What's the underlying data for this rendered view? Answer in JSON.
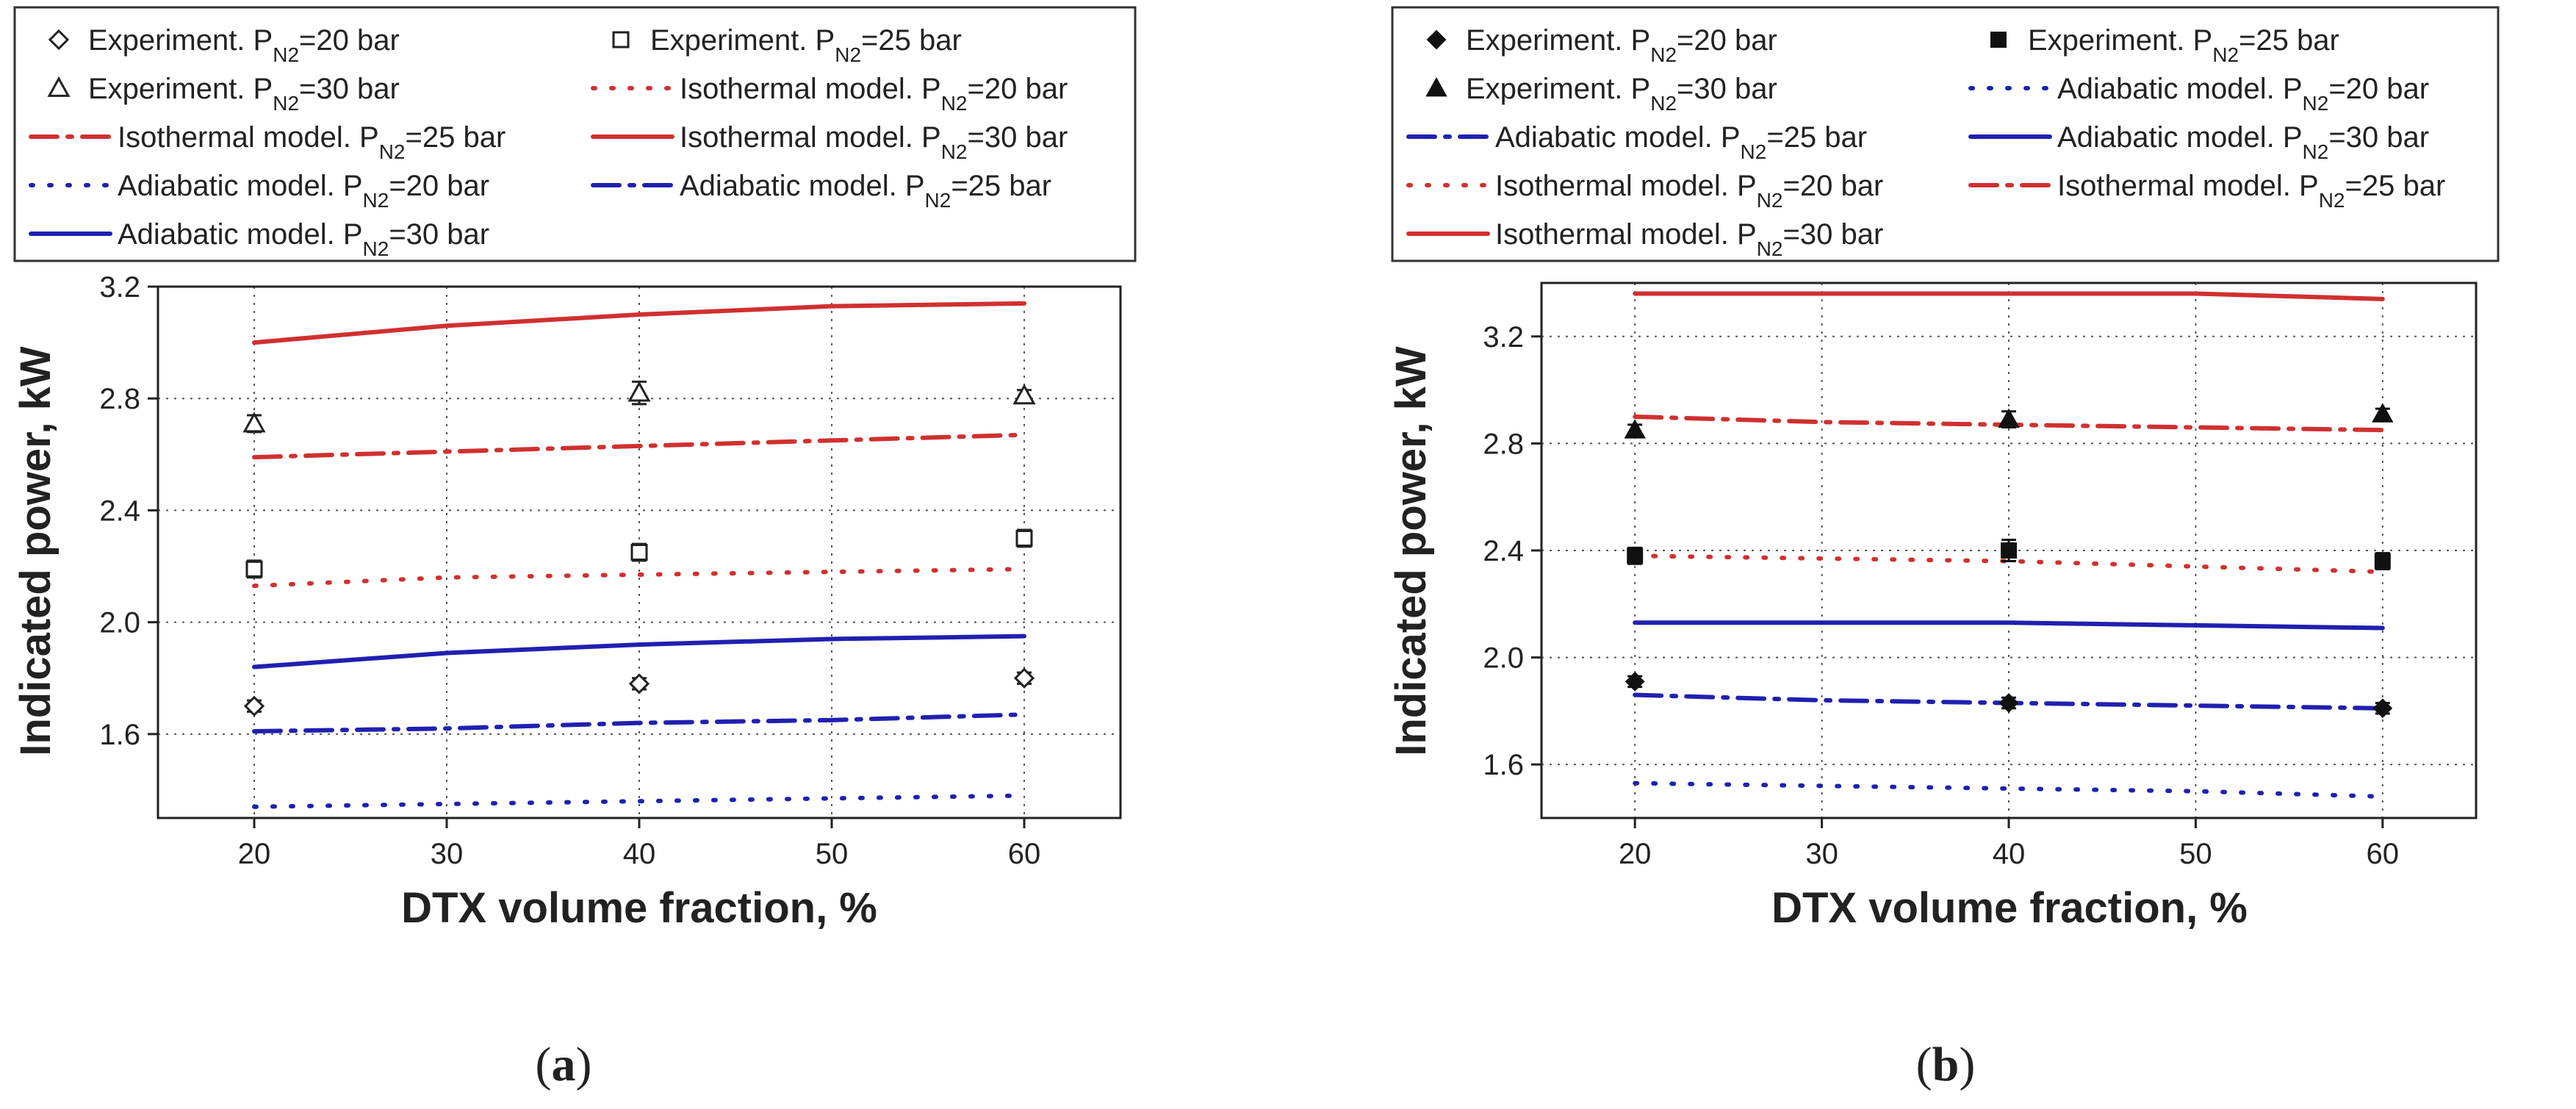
{
  "chart_data": [
    {
      "type": "line",
      "panel_label": "a",
      "xlabel": "DTX volume fraction, %",
      "ylabel": "Indicated power, kW",
      "xlim": [
        15,
        65
      ],
      "ylim": [
        1.3,
        3.2
      ],
      "xticks": [
        20,
        30,
        40,
        50,
        60
      ],
      "yticks": [
        1.6,
        2.0,
        2.4,
        2.8,
        3.2
      ],
      "grid": true,
      "legend_position": "top",
      "series": [
        {
          "name": "Experiment. P",
          "sub": "N2",
          "suffix": "=20 bar",
          "kind": "experiment",
          "marker": "diamond-open",
          "color": "#222222",
          "x": [
            20,
            40,
            60
          ],
          "y": [
            1.7,
            1.78,
            1.8
          ],
          "err": [
            0.02,
            0.02,
            0.02
          ]
        },
        {
          "name": "Experiment. P",
          "sub": "N2",
          "suffix": "=25 bar",
          "kind": "experiment",
          "marker": "square-open",
          "color": "#222222",
          "x": [
            20,
            40,
            60
          ],
          "y": [
            2.19,
            2.25,
            2.3
          ],
          "err": [
            0.03,
            0.03,
            0.03
          ]
        },
        {
          "name": "Experiment. P",
          "sub": "N2",
          "suffix": "=30 bar",
          "kind": "experiment",
          "marker": "triangle-open",
          "color": "#222222",
          "x": [
            20,
            40,
            60
          ],
          "y": [
            2.71,
            2.82,
            2.81
          ],
          "err": [
            0.03,
            0.04,
            0.02
          ]
        },
        {
          "name": "Isothermal model. P",
          "sub": "N2",
          "suffix": "=20 bar",
          "kind": "model",
          "style": "dot",
          "color": "#d03030",
          "x": [
            20,
            30,
            40,
            50,
            60
          ],
          "y": [
            2.13,
            2.16,
            2.17,
            2.18,
            2.19
          ]
        },
        {
          "name": "Isothermal model. P",
          "sub": "N2",
          "suffix": "=25 bar",
          "kind": "model",
          "style": "dashdot",
          "color": "#d03030",
          "x": [
            20,
            30,
            40,
            50,
            60
          ],
          "y": [
            2.59,
            2.61,
            2.63,
            2.65,
            2.67
          ]
        },
        {
          "name": "Isothermal model. P",
          "sub": "N2",
          "suffix": "=30 bar",
          "kind": "model",
          "style": "solid",
          "color": "#d03030",
          "x": [
            20,
            30,
            40,
            50,
            60
          ],
          "y": [
            3.0,
            3.06,
            3.1,
            3.13,
            3.14
          ]
        },
        {
          "name": "Adiabatic model. P",
          "sub": "N2",
          "suffix": "=20 bar",
          "kind": "model",
          "style": "dot",
          "color": "#2020b0",
          "x": [
            20,
            30,
            40,
            50,
            60
          ],
          "y": [
            1.34,
            1.35,
            1.36,
            1.37,
            1.38
          ]
        },
        {
          "name": "Adiabatic model. P",
          "sub": "N2",
          "suffix": "=25 bar",
          "kind": "model",
          "style": "dashdot",
          "color": "#2020b0",
          "x": [
            20,
            30,
            40,
            50,
            60
          ],
          "y": [
            1.61,
            1.62,
            1.64,
            1.65,
            1.67
          ]
        },
        {
          "name": "Adiabatic model. P",
          "sub": "N2",
          "suffix": "=30 bar",
          "kind": "model",
          "style": "solid",
          "color": "#2020b0",
          "x": [
            20,
            30,
            40,
            50,
            60
          ],
          "y": [
            1.84,
            1.89,
            1.92,
            1.94,
            1.95
          ]
        }
      ]
    },
    {
      "type": "line",
      "panel_label": "b",
      "xlabel": "DTX volume fraction, %",
      "ylabel": "Indicated power, kW",
      "xlim": [
        15,
        65
      ],
      "ylim": [
        1.4,
        3.4
      ],
      "xticks": [
        20,
        30,
        40,
        50,
        60
      ],
      "yticks": [
        1.6,
        2.0,
        2.4,
        2.8,
        3.2
      ],
      "grid": true,
      "legend_position": "top",
      "series": [
        {
          "name": "Experiment. P",
          "sub": "N2",
          "suffix": "=20 bar",
          "kind": "experiment",
          "marker": "diamond-filled",
          "color": "#111111",
          "x": [
            20,
            40,
            60
          ],
          "y": [
            1.91,
            1.83,
            1.81
          ],
          "err": [
            0.02,
            0.02,
            0.02
          ]
        },
        {
          "name": "Experiment. P",
          "sub": "N2",
          "suffix": "=25 bar",
          "kind": "experiment",
          "marker": "square-filled",
          "color": "#111111",
          "x": [
            20,
            40,
            60
          ],
          "y": [
            2.38,
            2.4,
            2.36
          ],
          "err": [
            0.03,
            0.04,
            0.03
          ]
        },
        {
          "name": "Experiment. P",
          "sub": "N2",
          "suffix": "=30 bar",
          "kind": "experiment",
          "marker": "triangle-filled",
          "color": "#111111",
          "x": [
            20,
            40,
            60
          ],
          "y": [
            2.85,
            2.89,
            2.91
          ],
          "err": [
            0.02,
            0.03,
            0.02
          ]
        },
        {
          "name": "Adiabatic model. P",
          "sub": "N2",
          "suffix": "=20 bar",
          "kind": "model",
          "style": "dot",
          "color": "#2020b0",
          "x": [
            20,
            30,
            40,
            50,
            60
          ],
          "y": [
            1.53,
            1.52,
            1.51,
            1.5,
            1.48
          ]
        },
        {
          "name": "Adiabatic model. P",
          "sub": "N2",
          "suffix": "=25 bar",
          "kind": "model",
          "style": "dashdot",
          "color": "#2020b0",
          "x": [
            20,
            30,
            40,
            50,
            60
          ],
          "y": [
            1.86,
            1.84,
            1.83,
            1.82,
            1.81
          ]
        },
        {
          "name": "Adiabatic model. P",
          "sub": "N2",
          "suffix": "=30 bar",
          "kind": "model",
          "style": "solid",
          "color": "#2020b0",
          "x": [
            20,
            30,
            40,
            50,
            60
          ],
          "y": [
            2.13,
            2.13,
            2.13,
            2.12,
            2.11
          ]
        },
        {
          "name": "Isothermal model. P",
          "sub": "N2",
          "suffix": "=20 bar",
          "kind": "model",
          "style": "dot",
          "color": "#d03030",
          "x": [
            20,
            30,
            40,
            50,
            60
          ],
          "y": [
            2.38,
            2.37,
            2.36,
            2.34,
            2.32
          ]
        },
        {
          "name": "Isothermal model. P",
          "sub": "N2",
          "suffix": "=25 bar",
          "kind": "model",
          "style": "dashdot",
          "color": "#d03030",
          "x": [
            20,
            30,
            40,
            50,
            60
          ],
          "y": [
            2.9,
            2.88,
            2.87,
            2.86,
            2.85
          ]
        },
        {
          "name": "Isothermal model. P",
          "sub": "N2",
          "suffix": "=30 bar",
          "kind": "model",
          "style": "solid",
          "color": "#d03030",
          "x": [
            20,
            30,
            40,
            50,
            60
          ],
          "y": [
            3.36,
            3.36,
            3.36,
            3.36,
            3.34
          ]
        }
      ]
    }
  ]
}
